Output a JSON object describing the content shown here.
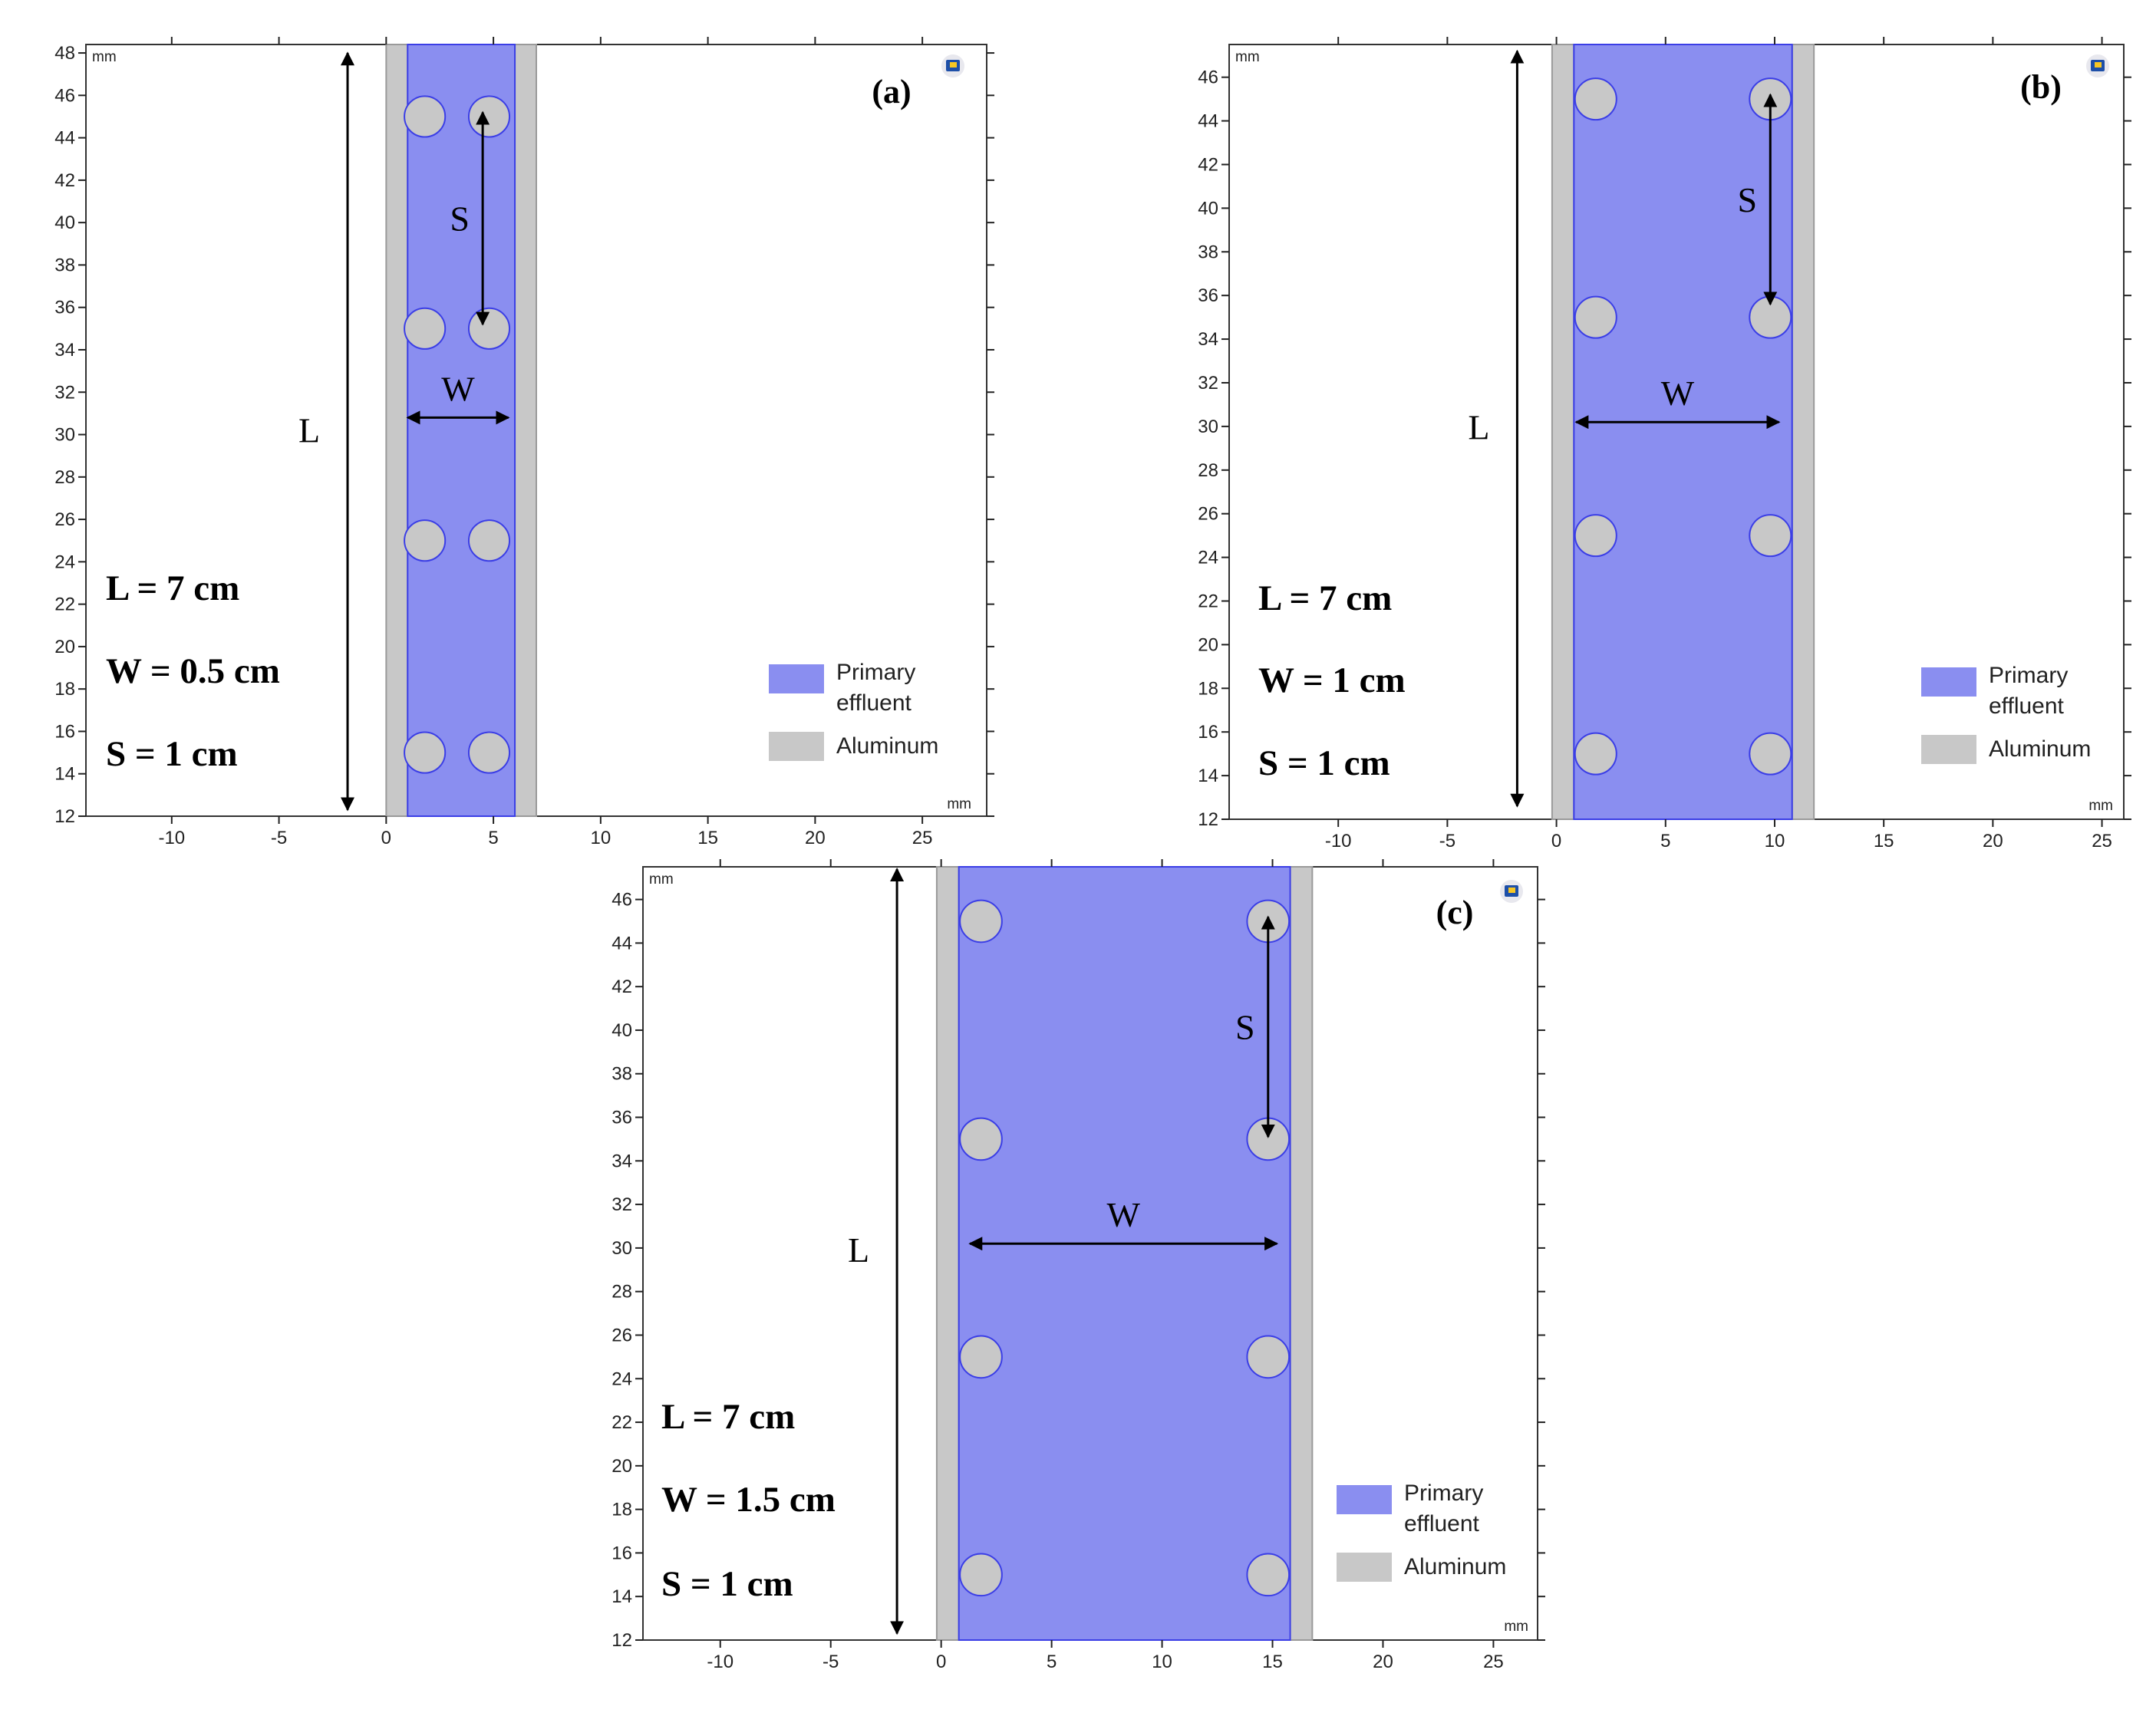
{
  "figure_title": "",
  "colors": {
    "effluent": "#8a8ef0",
    "effluent_stroke": "#3b3ee6",
    "aluminum": "#c8c8c8",
    "aluminum_stroke": "#9a9a9a",
    "axis": "#222222"
  },
  "legend": {
    "effluent_line1": "Primary",
    "effluent_line2": "effluent",
    "aluminum": "Aluminum"
  },
  "units": "mm",
  "arrow_labels": {
    "length": "L",
    "width": "W",
    "spacing": "S"
  },
  "panels": [
    {
      "label": "(a)",
      "params": {
        "length": "L = 7 cm",
        "width": "W = 0.5 cm",
        "spacing": "S = 1 cm"
      },
      "x_range": [
        -14,
        28
      ],
      "y_range": [
        12,
        48.4
      ],
      "x_ticks": [
        -10,
        -5,
        0,
        5,
        10,
        15,
        20,
        25
      ],
      "y_ticks": [
        12,
        14,
        16,
        18,
        20,
        22,
        24,
        26,
        28,
        30,
        32,
        34,
        36,
        38,
        40,
        42,
        44,
        46,
        48
      ],
      "x_tick_labels": [
        "-10",
        "-5",
        "0",
        "5",
        "10",
        "15",
        "20",
        "25"
      ],
      "y_tick_labels": [
        "12",
        "14",
        "16",
        "18",
        "20",
        "22",
        "24",
        "26",
        "28",
        "30",
        "32",
        "34",
        "36",
        "38",
        "40",
        "42",
        "44",
        "46",
        "48"
      ],
      "domain": {
        "left_wall": [
          0,
          1
        ],
        "channel": [
          1,
          6
        ],
        "right_wall": [
          6,
          7
        ],
        "bottom": 12,
        "top": 48.4
      },
      "electrode_x": [
        1.8,
        4.8
      ],
      "electrode_y": [
        15,
        25,
        35,
        45
      ],
      "electrode_radius": 0.95,
      "arrow_L": {
        "x": -1.8,
        "y1": 12.3,
        "y2": 48
      },
      "arrow_W": {
        "y": 30.8,
        "x1": 1,
        "x2": 5.7
      },
      "arrow_S": {
        "x": 4.5,
        "y1": 35.2,
        "y2": 45.2
      }
    },
    {
      "label": "(b)",
      "params": {
        "length": "L = 7 cm",
        "width": "W = 1 cm",
        "spacing": "S = 1 cm"
      },
      "x_range": [
        -15,
        26
      ],
      "y_range": [
        12,
        47.5
      ],
      "x_ticks": [
        -10,
        -5,
        0,
        5,
        10,
        15,
        20,
        25
      ],
      "y_ticks": [
        12,
        14,
        16,
        18,
        20,
        22,
        24,
        26,
        28,
        30,
        32,
        34,
        36,
        38,
        40,
        42,
        44,
        46
      ],
      "x_tick_labels": [
        "-10",
        "-5",
        "0",
        "5",
        "10",
        "15",
        "20",
        "25"
      ],
      "y_tick_labels": [
        "12",
        "14",
        "16",
        "18",
        "20",
        "22",
        "24",
        "26",
        "28",
        "30",
        "32",
        "34",
        "36",
        "38",
        "40",
        "42",
        "44",
        "46"
      ],
      "domain": {
        "left_wall": [
          -0.2,
          0.8
        ],
        "channel": [
          0.8,
          10.8
        ],
        "right_wall": [
          10.8,
          11.8
        ],
        "bottom": 12,
        "top": 47.5
      },
      "electrode_x": [
        1.8,
        9.8
      ],
      "electrode_y": [
        15,
        25,
        35,
        45
      ],
      "electrode_radius": 0.95,
      "arrow_L": {
        "x": -1.8,
        "y1": 12.6,
        "y2": 47.2
      },
      "arrow_W": {
        "y": 30.2,
        "x1": 0.9,
        "x2": 10.2
      },
      "arrow_S": {
        "x": 9.8,
        "y1": 35.6,
        "y2": 45.2
      }
    },
    {
      "label": "(c)",
      "params": {
        "length": "L = 7 cm",
        "width": "W = 1.5 cm",
        "spacing": "S = 1 cm"
      },
      "x_range": [
        -13.5,
        27
      ],
      "y_range": [
        12,
        47.5
      ],
      "x_ticks": [
        -10,
        -5,
        0,
        5,
        10,
        15,
        20,
        25
      ],
      "y_ticks": [
        12,
        14,
        16,
        18,
        20,
        22,
        24,
        26,
        28,
        30,
        32,
        34,
        36,
        38,
        40,
        42,
        44,
        46
      ],
      "x_tick_labels": [
        "-10",
        "-5",
        "0",
        "5",
        "10",
        "15",
        "20",
        "25"
      ],
      "y_tick_labels": [
        "12",
        "14",
        "16",
        "18",
        "20",
        "22",
        "24",
        "26",
        "28",
        "30",
        "32",
        "34",
        "36",
        "38",
        "40",
        "42",
        "44",
        "46"
      ],
      "domain": {
        "left_wall": [
          -0.2,
          0.8
        ],
        "channel": [
          0.8,
          15.8
        ],
        "right_wall": [
          15.8,
          16.8
        ],
        "bottom": 12,
        "top": 47.5
      },
      "electrode_x": [
        1.8,
        14.8
      ],
      "electrode_y": [
        15,
        25,
        35,
        45
      ],
      "electrode_radius": 0.95,
      "arrow_L": {
        "x": -2,
        "y1": 12.3,
        "y2": 47.4
      },
      "arrow_W": {
        "y": 30.2,
        "x1": 1.3,
        "x2": 15.2
      },
      "arrow_S": {
        "x": 14.8,
        "y1": 35.1,
        "y2": 45.2
      }
    }
  ]
}
